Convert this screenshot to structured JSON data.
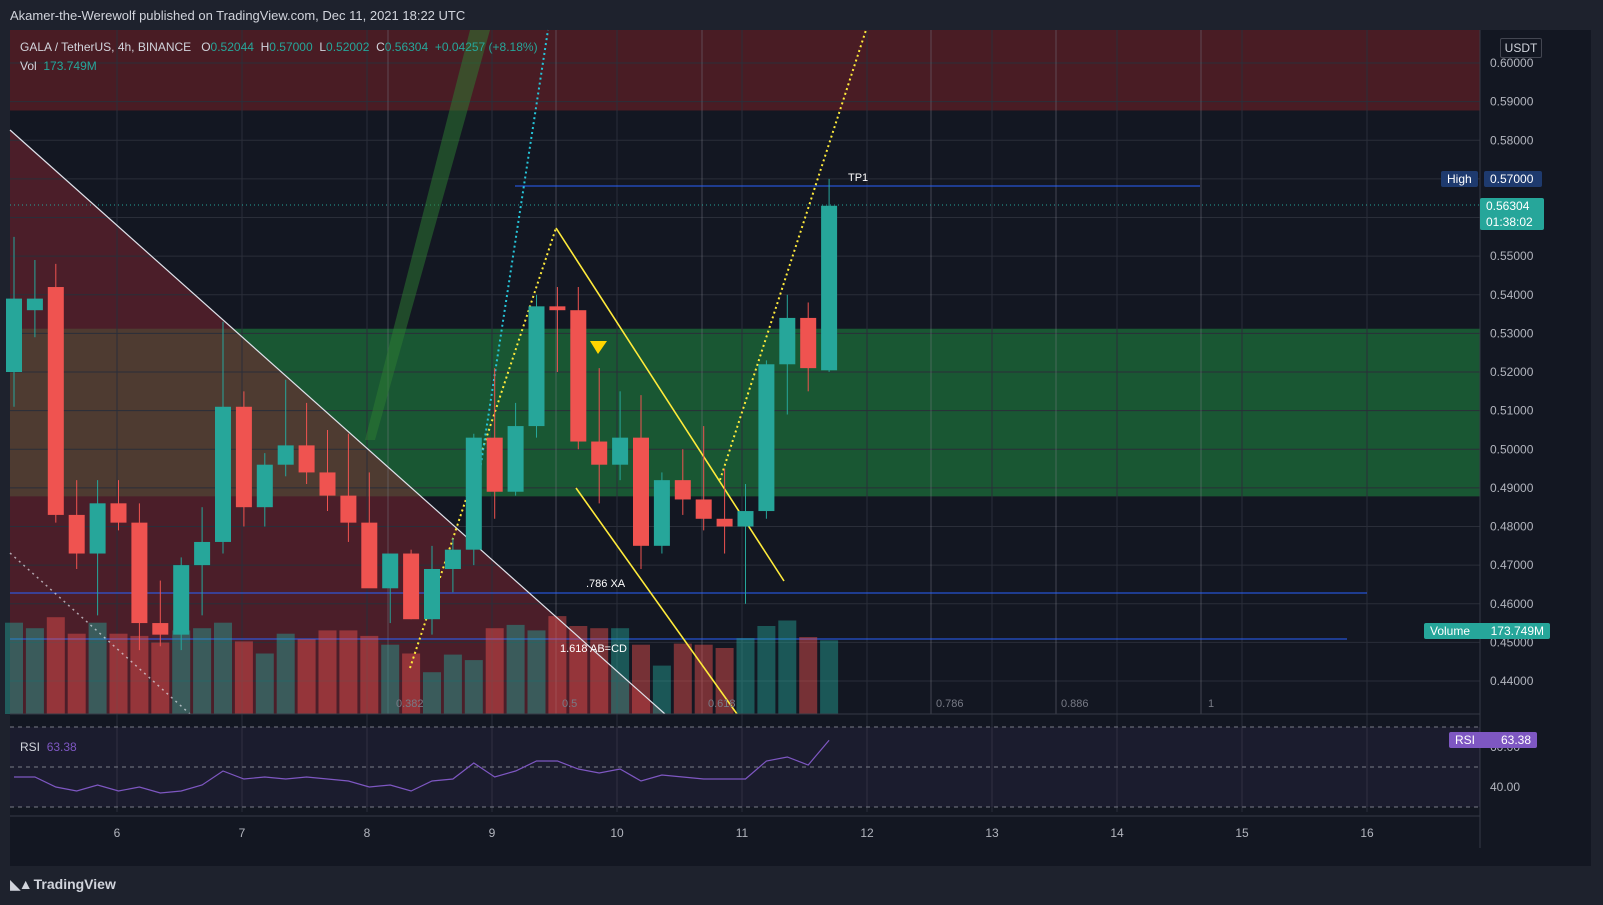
{
  "header": {
    "published": "Akamer-the-Werewolf published on TradingView.com, Dec 11, 2021 18:22 UTC"
  },
  "legend": {
    "symbol": "GALA / TetherUS, 4h, BINANCE",
    "o_label": "O",
    "o": "0.52044",
    "h_label": "H",
    "h": "0.57000",
    "l_label": "L",
    "l": "0.52002",
    "c_label": "C",
    "c": "0.56304",
    "change": "+0.04257 (+8.18%)",
    "vol_label": "Vol",
    "vol": "173.749M"
  },
  "currency": "USDT",
  "badges": {
    "high_label": "High",
    "high_value": "0.57000",
    "last_price": "0.56304",
    "countdown": "01:38:02",
    "volume_label": "Volume",
    "volume_value": "173.749M",
    "rsi_label": "RSI",
    "rsi_value": "63.38"
  },
  "rsi_legend": {
    "label": "RSI",
    "value": "63.38"
  },
  "annotations": {
    "tp1": "TP1",
    "xa": ".786 XA",
    "abcd": "1.618 AB=CD",
    "fib": [
      "0.382",
      "0.5",
      "0.618",
      "0.786",
      "0.886",
      "1"
    ]
  },
  "footer": {
    "brand": "TradingView"
  },
  "colors": {
    "up": "#26a69a",
    "down": "#ef5350",
    "rsi": "#7e57c2",
    "zone_green": "#1b5e35",
    "zone_red": "#5c1f26",
    "pattern": "#ffeb3b"
  },
  "chart_data": {
    "type": "candlestick",
    "price_ticks": [
      "0.60000",
      "0.59000",
      "0.58000",
      "0.57000",
      "0.56000",
      "0.55000",
      "0.54000",
      "0.53000",
      "0.52000",
      "0.51000",
      "0.50000",
      "0.49000",
      "0.48000",
      "0.47000",
      "0.46000",
      "0.45000",
      "0.44000"
    ],
    "rsi_ticks": [
      "60.00",
      "40.00"
    ],
    "x_ticks": [
      "6",
      "7",
      "8",
      "9",
      "10",
      "11",
      "12",
      "13",
      "14",
      "15",
      "16"
    ],
    "candles": [
      {
        "o": 0.52,
        "h": 0.555,
        "l": 0.511,
        "c": 0.539
      },
      {
        "o": 0.536,
        "h": 0.549,
        "l": 0.529,
        "c": 0.539
      },
      {
        "o": 0.542,
        "h": 0.548,
        "l": 0.481,
        "c": 0.483
      },
      {
        "o": 0.483,
        "h": 0.492,
        "l": 0.469,
        "c": 0.473
      },
      {
        "o": 0.473,
        "h": 0.492,
        "l": 0.457,
        "c": 0.486
      },
      {
        "o": 0.486,
        "h": 0.492,
        "l": 0.479,
        "c": 0.481
      },
      {
        "o": 0.481,
        "h": 0.486,
        "l": 0.448,
        "c": 0.455
      },
      {
        "o": 0.455,
        "h": 0.466,
        "l": 0.449,
        "c": 0.452
      },
      {
        "o": 0.452,
        "h": 0.472,
        "l": 0.448,
        "c": 0.47
      },
      {
        "o": 0.47,
        "h": 0.485,
        "l": 0.457,
        "c": 0.476
      },
      {
        "o": 0.476,
        "h": 0.533,
        "l": 0.473,
        "c": 0.511
      },
      {
        "o": 0.511,
        "h": 0.515,
        "l": 0.48,
        "c": 0.485
      },
      {
        "o": 0.485,
        "h": 0.499,
        "l": 0.48,
        "c": 0.496
      },
      {
        "o": 0.496,
        "h": 0.518,
        "l": 0.493,
        "c": 0.501
      },
      {
        "o": 0.501,
        "h": 0.512,
        "l": 0.491,
        "c": 0.494
      },
      {
        "o": 0.494,
        "h": 0.505,
        "l": 0.484,
        "c": 0.488
      },
      {
        "o": 0.488,
        "h": 0.504,
        "l": 0.476,
        "c": 0.481
      },
      {
        "o": 0.481,
        "h": 0.494,
        "l": 0.465,
        "c": 0.464
      },
      {
        "o": 0.464,
        "h": 0.473,
        "l": 0.455,
        "c": 0.473
      },
      {
        "o": 0.473,
        "h": 0.474,
        "l": 0.456,
        "c": 0.456
      },
      {
        "o": 0.456,
        "h": 0.475,
        "l": 0.452,
        "c": 0.469
      },
      {
        "o": 0.469,
        "h": 0.477,
        "l": 0.463,
        "c": 0.474
      },
      {
        "o": 0.474,
        "h": 0.504,
        "l": 0.47,
        "c": 0.503
      },
      {
        "o": 0.503,
        "h": 0.521,
        "l": 0.482,
        "c": 0.489
      },
      {
        "o": 0.489,
        "h": 0.512,
        "l": 0.488,
        "c": 0.506
      },
      {
        "o": 0.506,
        "h": 0.54,
        "l": 0.503,
        "c": 0.537
      },
      {
        "o": 0.537,
        "h": 0.542,
        "l": 0.52,
        "c": 0.536
      },
      {
        "o": 0.536,
        "h": 0.542,
        "l": 0.5,
        "c": 0.502
      },
      {
        "o": 0.502,
        "h": 0.521,
        "l": 0.486,
        "c": 0.496
      },
      {
        "o": 0.496,
        "h": 0.515,
        "l": 0.492,
        "c": 0.503
      },
      {
        "o": 0.503,
        "h": 0.514,
        "l": 0.469,
        "c": 0.475
      },
      {
        "o": 0.475,
        "h": 0.494,
        "l": 0.473,
        "c": 0.492
      },
      {
        "o": 0.492,
        "h": 0.5,
        "l": 0.483,
        "c": 0.487
      },
      {
        "o": 0.487,
        "h": 0.506,
        "l": 0.479,
        "c": 0.482
      },
      {
        "o": 0.482,
        "h": 0.495,
        "l": 0.473,
        "c": 0.48
      },
      {
        "o": 0.48,
        "h": 0.491,
        "l": 0.46,
        "c": 0.484
      },
      {
        "o": 0.484,
        "h": 0.523,
        "l": 0.482,
        "c": 0.522
      },
      {
        "o": 0.522,
        "h": 0.54,
        "l": 0.509,
        "c": 0.534
      },
      {
        "o": 0.534,
        "h": 0.538,
        "l": 0.515,
        "c": 0.521
      },
      {
        "o": 0.52044,
        "h": 0.57,
        "l": 0.52002,
        "c": 0.56304
      }
    ],
    "volume_rel": [
      0.83,
      0.78,
      0.88,
      0.73,
      0.83,
      0.73,
      0.71,
      0.65,
      0.76,
      0.78,
      0.83,
      0.66,
      0.55,
      0.73,
      0.68,
      0.76,
      0.76,
      0.71,
      0.63,
      0.55,
      0.38,
      0.54,
      0.49,
      0.78,
      0.81,
      0.76,
      0.89,
      0.8,
      0.78,
      0.78,
      0.63,
      0.44,
      0.64,
      0.63,
      0.6,
      0.69,
      0.8,
      0.85,
      0.7,
      0.67
    ],
    "rsi": [
      45,
      45,
      40,
      38,
      41,
      38,
      40,
      37,
      38,
      41,
      48,
      44,
      45,
      44,
      45,
      44,
      43,
      40,
      41,
      38,
      43,
      44,
      52,
      45,
      48,
      53,
      53,
      49,
      47,
      49,
      43,
      46,
      45,
      44,
      44,
      44,
      53,
      55,
      51,
      63.38
    ]
  }
}
